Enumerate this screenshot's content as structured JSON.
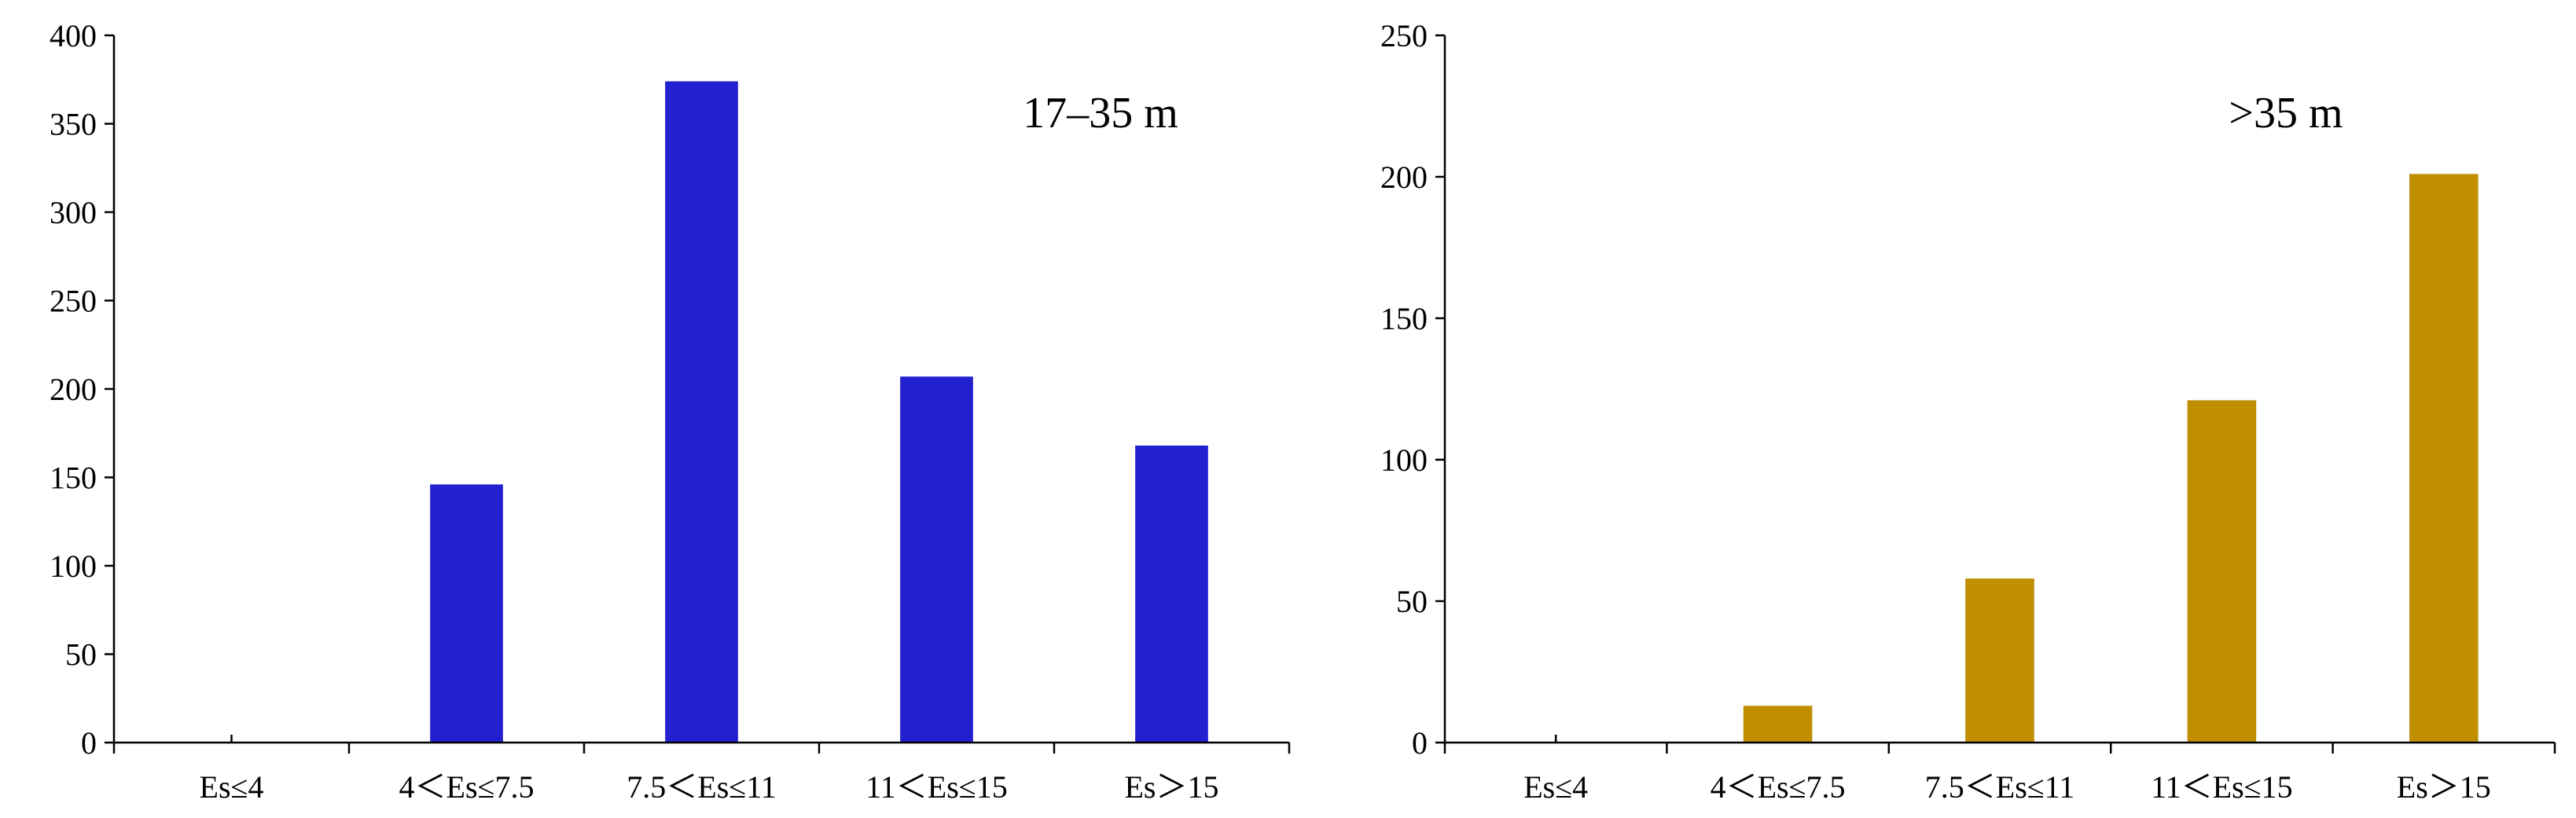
{
  "chart_data": [
    {
      "type": "bar",
      "title": "17–35 m",
      "categories": [
        "Es≤4",
        "4<Es≤7.5",
        "7.5<Es≤11",
        "11<Es≤15",
        "Es>15"
      ],
      "category_labels": [
        "Es≤4",
        "4＜Es≤7.5",
        "7.5＜Es≤11",
        "11＜Es≤15",
        "Es＞15"
      ],
      "values": [
        0,
        146,
        374,
        207,
        168
      ],
      "ylim": [
        0,
        400
      ],
      "yticks": [
        0,
        50,
        100,
        150,
        200,
        250,
        300,
        350,
        400
      ],
      "color": "#2320CF",
      "grid": false
    },
    {
      "type": "bar",
      "title": ">35 m",
      "categories": [
        "Es≤4",
        "4<Es≤7.5",
        "7.5<Es≤11",
        "11<Es≤15",
        "Es>15"
      ],
      "category_labels": [
        "Es≤4",
        "4＜Es≤7.5",
        "7.5＜Es≤11",
        "11＜Es≤15",
        "Es＞15"
      ],
      "values": [
        0,
        13,
        58,
        121,
        201
      ],
      "ylim": [
        0,
        250
      ],
      "yticks": [
        0,
        50,
        100,
        150,
        200,
        250
      ],
      "color": "#BF8F00",
      "grid": false
    }
  ]
}
